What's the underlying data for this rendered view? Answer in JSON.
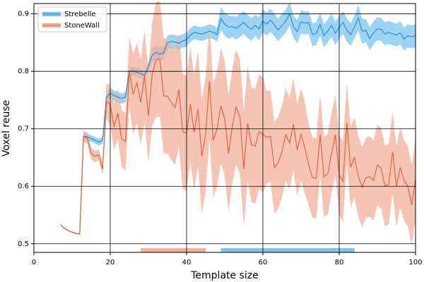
{
  "chart_data": {
    "type": "line_band",
    "xlabel": "Template size",
    "ylabel": "Voxel reuse",
    "xlim": [
      0,
      100
    ],
    "xticks": [
      0,
      20,
      40,
      60,
      80,
      100
    ],
    "ylim": [
      0.485,
      0.918
    ],
    "yticks": [
      0.5,
      0.6,
      0.7,
      0.8,
      0.9
    ],
    "grid": true,
    "legend": "upper left",
    "x": [
      7,
      8,
      9,
      10,
      11,
      12,
      13,
      14,
      15,
      16,
      17,
      18,
      19,
      20,
      21,
      22,
      23,
      24,
      25,
      26,
      27,
      28,
      29,
      30,
      31,
      32,
      33,
      34,
      35,
      36,
      37,
      38,
      39,
      40,
      41,
      42,
      43,
      44,
      45,
      46,
      47,
      48,
      49,
      50,
      51,
      52,
      53,
      54,
      55,
      56,
      57,
      58,
      59,
      60,
      61,
      62,
      63,
      64,
      65,
      66,
      67,
      68,
      69,
      70,
      71,
      72,
      73,
      74,
      75,
      76,
      77,
      78,
      79,
      80,
      81,
      82,
      83,
      84,
      85,
      86,
      87,
      88,
      89,
      90,
      91,
      92,
      93,
      94,
      95,
      96,
      97,
      98,
      99,
      100
    ],
    "series": [
      {
        "name": "Strebelle",
        "color": "#2b8fd6",
        "band_color": "#7cc4f0",
        "values": [
          0.533,
          0.527,
          0.523,
          0.52,
          0.518,
          0.517,
          0.687,
          0.686,
          0.683,
          0.68,
          0.677,
          0.68,
          0.755,
          0.762,
          0.758,
          0.755,
          0.753,
          0.755,
          0.8,
          0.801,
          0.798,
          0.796,
          0.793,
          0.808,
          0.828,
          0.833,
          0.83,
          0.832,
          0.85,
          0.852,
          0.851,
          0.849,
          0.853,
          0.855,
          0.863,
          0.868,
          0.866,
          0.865,
          0.867,
          0.87,
          0.868,
          0.864,
          0.892,
          0.882,
          0.877,
          0.878,
          0.875,
          0.88,
          0.885,
          0.878,
          0.873,
          0.88,
          0.874,
          0.888,
          0.882,
          0.889,
          0.881,
          0.872,
          0.88,
          0.887,
          0.9,
          0.878,
          0.869,
          0.886,
          0.884,
          0.885,
          0.864,
          0.866,
          0.882,
          0.862,
          0.87,
          0.88,
          0.866,
          0.877,
          0.885,
          0.872,
          0.864,
          0.877,
          0.893,
          0.87,
          0.871,
          0.857,
          0.867,
          0.874,
          0.873,
          0.865,
          0.868,
          0.865,
          0.863,
          0.867,
          0.856,
          0.862,
          0.86,
          0.862
        ],
        "errors": [
          0.001,
          0.001,
          0.001,
          0.001,
          0.001,
          0.001,
          0.006,
          0.006,
          0.006,
          0.006,
          0.006,
          0.006,
          0.009,
          0.009,
          0.009,
          0.009,
          0.009,
          0.009,
          0.008,
          0.008,
          0.008,
          0.008,
          0.008,
          0.008,
          0.012,
          0.012,
          0.012,
          0.012,
          0.012,
          0.012,
          0.012,
          0.012,
          0.012,
          0.012,
          0.012,
          0.012,
          0.012,
          0.012,
          0.012,
          0.012,
          0.012,
          0.012,
          0.02,
          0.02,
          0.02,
          0.018,
          0.02,
          0.02,
          0.02,
          0.02,
          0.02,
          0.018,
          0.02,
          0.02,
          0.02,
          0.02,
          0.02,
          0.02,
          0.02,
          0.02,
          0.02,
          0.02,
          0.02,
          0.02,
          0.02,
          0.02,
          0.02,
          0.02,
          0.02,
          0.02,
          0.02,
          0.02,
          0.02,
          0.02,
          0.02,
          0.02,
          0.02,
          0.02,
          0.022,
          0.022,
          0.02,
          0.02,
          0.02,
          0.02,
          0.02,
          0.02,
          0.02,
          0.02,
          0.02,
          0.02,
          0.02,
          0.02,
          0.02,
          0.02
        ]
      },
      {
        "name": "StoneWall",
        "color": "#e0663e",
        "band_color": "#f2b09c",
        "values": [
          0.533,
          0.527,
          0.523,
          0.52,
          0.518,
          0.517,
          0.687,
          0.684,
          0.657,
          0.652,
          0.655,
          0.63,
          0.748,
          0.742,
          0.703,
          0.727,
          0.682,
          0.678,
          0.8,
          0.76,
          0.78,
          0.746,
          0.792,
          0.722,
          0.795,
          0.82,
          0.822,
          0.757,
          0.757,
          0.746,
          0.737,
          0.768,
          0.695,
          0.692,
          0.743,
          0.694,
          0.735,
          0.652,
          0.69,
          0.783,
          0.68,
          0.7,
          0.74,
          0.718,
          0.657,
          0.705,
          0.738,
          0.72,
          0.63,
          0.71,
          0.672,
          0.67,
          0.695,
          0.69,
          0.685,
          0.687,
          0.632,
          0.641,
          0.66,
          0.69,
          0.675,
          0.708,
          0.663,
          0.69,
          0.667,
          0.637,
          0.615,
          0.614,
          0.69,
          0.617,
          0.621,
          0.658,
          0.69,
          0.62,
          0.608,
          0.71,
          0.633,
          0.65,
          0.618,
          0.598,
          0.615,
          0.617,
          0.61,
          0.637,
          0.631,
          0.6,
          0.604,
          0.66,
          0.6,
          0.633,
          0.61,
          0.6,
          0.567,
          0.613
        ],
        "errors": [
          0.001,
          0.001,
          0.001,
          0.001,
          0.001,
          0.001,
          0.01,
          0.01,
          0.01,
          0.01,
          0.01,
          0.01,
          0.03,
          0.035,
          0.04,
          0.045,
          0.05,
          0.05,
          0.06,
          0.07,
          0.07,
          0.075,
          0.08,
          0.08,
          0.09,
          0.1,
          0.1,
          0.1,
          0.1,
          0.1,
          0.1,
          0.1,
          0.1,
          0.1,
          0.1,
          0.1,
          0.1,
          0.1,
          0.1,
          0.1,
          0.1,
          0.1,
          0.1,
          0.1,
          0.1,
          0.1,
          0.1,
          0.1,
          0.1,
          0.1,
          0.1,
          0.1,
          0.1,
          0.1,
          0.08,
          0.08,
          0.08,
          0.08,
          0.08,
          0.08,
          0.08,
          0.08,
          0.08,
          0.08,
          0.08,
          0.07,
          0.07,
          0.07,
          0.07,
          0.07,
          0.07,
          0.07,
          0.07,
          0.07,
          0.07,
          0.07,
          0.07,
          0.07,
          0.07,
          0.07,
          0.07,
          0.07,
          0.07,
          0.07,
          0.07,
          0.07,
          0.07,
          0.07,
          0.07,
          0.07,
          0.07,
          0.07,
          0.07,
          0.07
        ]
      }
    ],
    "highlight_ranges": [
      {
        "start": 28,
        "end": 45,
        "color": "#f2b09c"
      },
      {
        "start": 49,
        "end": 84,
        "color": "#7cc4f0"
      }
    ]
  }
}
